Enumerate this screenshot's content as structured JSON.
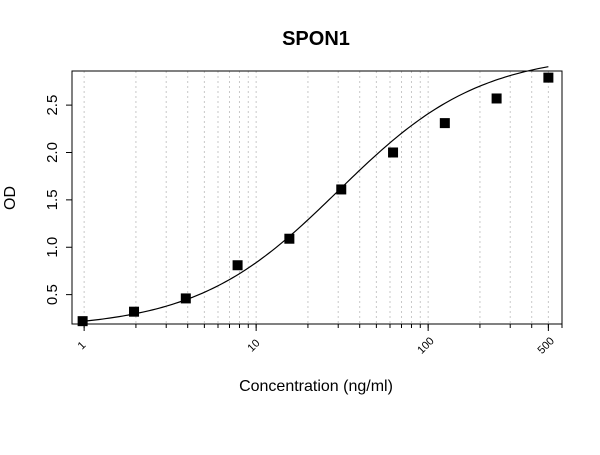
{
  "chart_data": {
    "type": "scatter",
    "title": "SPON1",
    "xlabel": "Concentration (ng/ml)",
    "ylabel": "OD",
    "x_scale": "log",
    "xlim": [
      0.85,
      600
    ],
    "ylim": [
      0.19,
      2.86
    ],
    "grid": "vertical dotted lines at log decades",
    "x_ticks": [
      {
        "value": 1,
        "label": "1"
      },
      {
        "value": 10,
        "label": "10"
      },
      {
        "value": 100,
        "label": "100"
      },
      {
        "value": 500,
        "label": "500"
      }
    ],
    "y_ticks": [
      {
        "value": 0.5,
        "label": "0.5"
      },
      {
        "value": 1.0,
        "label": "1.0"
      },
      {
        "value": 1.5,
        "label": "1.5"
      },
      {
        "value": 2.0,
        "label": "2.0"
      },
      {
        "value": 2.5,
        "label": "2.5"
      }
    ],
    "series": [
      {
        "marker": "filled-square",
        "color": "#000000",
        "x": [
          0.98,
          1.95,
          3.9,
          7.8,
          15.6,
          31.25,
          62.5,
          125,
          250,
          500
        ],
        "y": [
          0.22,
          0.32,
          0.46,
          0.81,
          1.09,
          1.61,
          2.0,
          2.31,
          2.57,
          2.79
        ]
      }
    ],
    "fit_curve": {
      "model": "4PL",
      "bottom": 0.14,
      "top": 3.05,
      "ec50": 30,
      "hill": 1.05,
      "color": "#000000"
    }
  }
}
